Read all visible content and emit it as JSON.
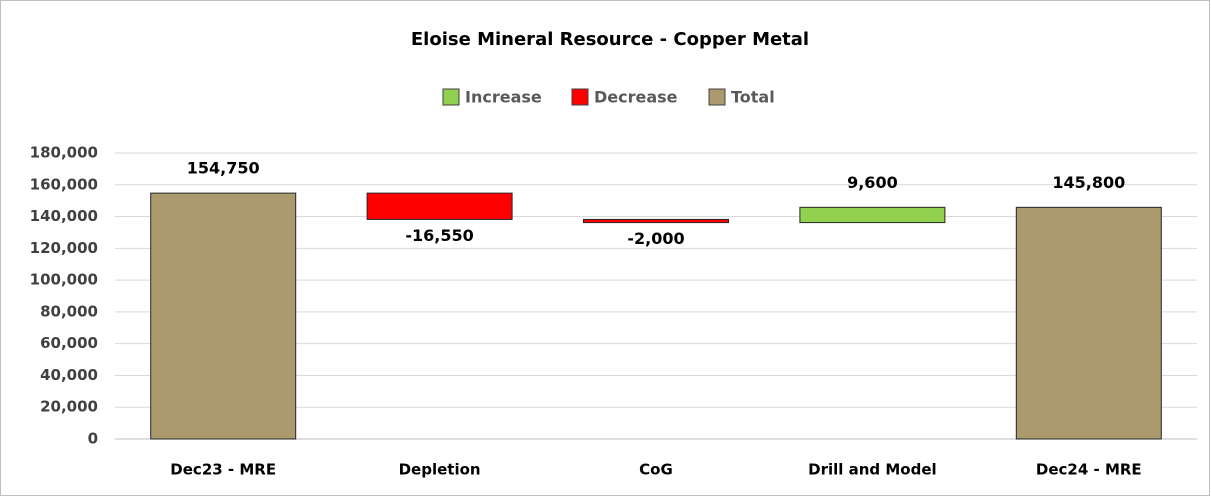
{
  "chart_data": {
    "type": "waterfall",
    "title": "Eloise Mineral Resource - Copper Metal",
    "legend": [
      {
        "name": "Increase",
        "color": "#92d050"
      },
      {
        "name": "Decrease",
        "color": "#ff0000"
      },
      {
        "name": "Total",
        "color": "#ab9a6e"
      }
    ],
    "categories": [
      "Dec23 - MRE",
      "Depletion",
      "CoG",
      "Drill and Model",
      "Dec24 - MRE"
    ],
    "values": [
      154750,
      -16550,
      -2000,
      9600,
      145800
    ],
    "value_labels": [
      "154,750",
      "-16,550",
      "-2,000",
      "9,600",
      "145,800"
    ],
    "is_total": [
      true,
      false,
      false,
      false,
      true
    ],
    "ylim": [
      0,
      180000
    ],
    "yticks": [
      0,
      {
        "value": 20000,
        "label": "20,000"
      },
      {
        "value": 40000,
        "label": "40,000"
      },
      {
        "value": 60000,
        "label": "60,000"
      },
      {
        "value": 80000,
        "label": "80,000"
      },
      {
        "value": 100000,
        "label": "100,000"
      },
      {
        "value": 120000,
        "label": "120,000"
      },
      {
        "value": 140000,
        "label": "140,000"
      },
      {
        "value": 160000,
        "label": "160,000"
      },
      {
        "value": 180000,
        "label": "180,000"
      }
    ],
    "grid": true
  }
}
